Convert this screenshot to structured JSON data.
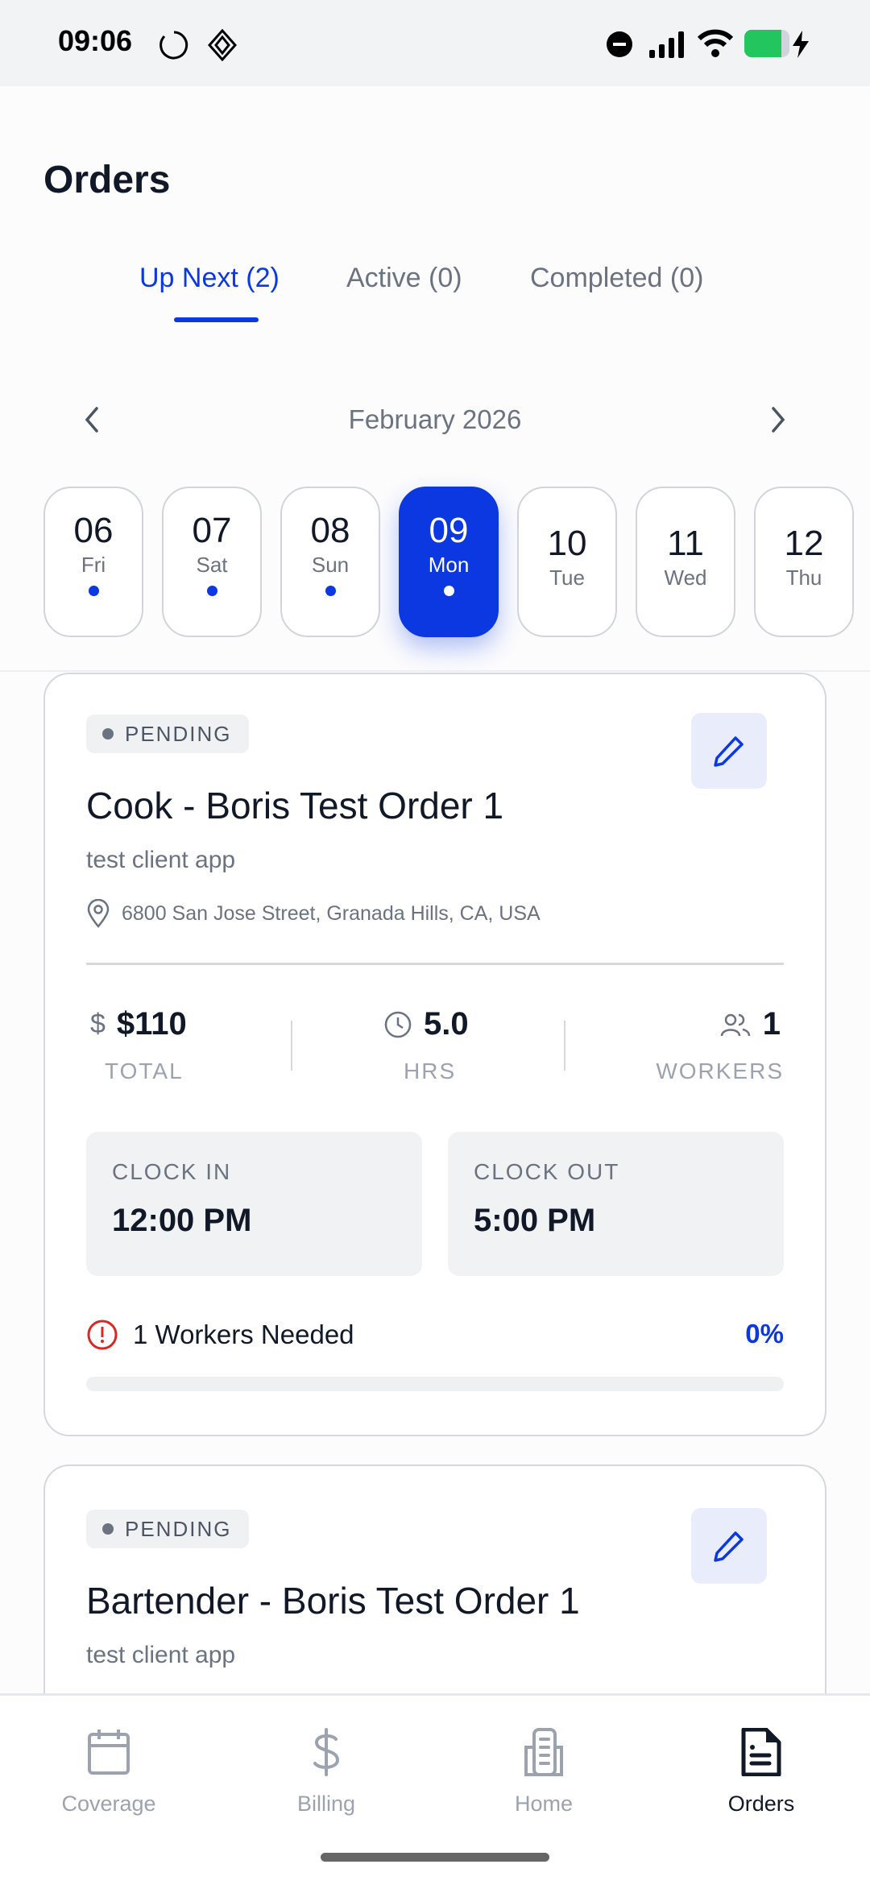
{
  "status_bar": {
    "time": "09:06",
    "battery_color": "#22c55e"
  },
  "header": {
    "title": "Orders"
  },
  "tabs": [
    {
      "label": "Up Next (2)",
      "active": true
    },
    {
      "label": "Active (0)"
    },
    {
      "label": "Completed (0)"
    }
  ],
  "calendar": {
    "month": "February 2026",
    "days": [
      {
        "num": "06",
        "day": "Fri",
        "dot": true
      },
      {
        "num": "07",
        "day": "Sat",
        "dot": true
      },
      {
        "num": "08",
        "day": "Sun",
        "dot": true
      },
      {
        "num": "09",
        "day": "Mon",
        "dot": true,
        "selected": true
      },
      {
        "num": "10",
        "day": "Tue",
        "dot": false
      },
      {
        "num": "11",
        "day": "Wed",
        "dot": false
      },
      {
        "num": "12",
        "day": "Thu",
        "dot": false
      }
    ]
  },
  "orders": [
    {
      "status": "PENDING",
      "title": "Cook - Boris Test Order 1",
      "client": "test client app",
      "address": "6800 San Jose Street, Granada Hills, CA, USA",
      "total": "$110",
      "total_label": "TOTAL",
      "hours": "5.0",
      "hours_label": "HRS",
      "workers": "1",
      "workers_label": "WORKERS",
      "clock_in_label": "CLOCK IN",
      "clock_in": "12:00 PM",
      "clock_out_label": "CLOCK OUT",
      "clock_out": "5:00 PM",
      "needed": "1 Workers Needed",
      "fill_percent": "0%",
      "fill_value": 0
    },
    {
      "status": "PENDING",
      "title": "Bartender - Boris Test Order 1",
      "client": "test client app"
    }
  ],
  "nav": [
    {
      "label": "Coverage",
      "icon": "calendar-icon"
    },
    {
      "label": "Billing",
      "icon": "dollar-icon"
    },
    {
      "label": "Home",
      "icon": "building-icon"
    },
    {
      "label": "Orders",
      "icon": "document-icon",
      "active": true
    }
  ],
  "colors": {
    "accent": "#0b38e0",
    "error": "#dc2626"
  }
}
